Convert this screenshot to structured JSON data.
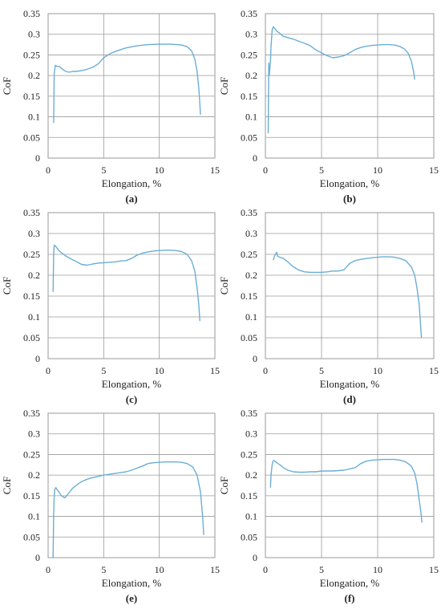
{
  "chart_data": [
    {
      "type": "line",
      "panel_label": "(a)",
      "xlabel": "Elongation, %",
      "ylabel": "CoF",
      "xlim": [
        0,
        15
      ],
      "ylim": [
        0,
        0.35
      ],
      "xticks": [
        "0",
        "5",
        "10",
        "15"
      ],
      "yticks": [
        "0",
        "0.05",
        "0.1",
        "0.15",
        "0.2",
        "0.25",
        "0.3",
        "0.35"
      ],
      "grid": true,
      "series_color": "#6aaed6",
      "x": [
        0.5,
        0.55,
        0.65,
        0.8,
        1.0,
        1.3,
        1.6,
        1.9,
        2.2,
        2.5,
        3.0,
        3.5,
        4.0,
        4.5,
        5.0,
        5.5,
        6.0,
        7.0,
        8.0,
        9.0,
        10.0,
        11.0,
        12.0,
        12.5,
        12.9,
        13.2,
        13.4,
        13.55,
        13.65,
        13.7
      ],
      "y": [
        0.085,
        0.205,
        0.225,
        0.222,
        0.222,
        0.215,
        0.21,
        0.208,
        0.21,
        0.21,
        0.212,
        0.215,
        0.22,
        0.228,
        0.243,
        0.252,
        0.258,
        0.267,
        0.272,
        0.275,
        0.276,
        0.276,
        0.274,
        0.27,
        0.26,
        0.24,
        0.21,
        0.17,
        0.13,
        0.105
      ]
    },
    {
      "type": "line",
      "panel_label": "(b)",
      "xlabel": "Elongation, %",
      "ylabel": "CoF",
      "xlim": [
        0,
        15
      ],
      "ylim": [
        0,
        0.35
      ],
      "xticks": [
        "0",
        "5",
        "10",
        "15"
      ],
      "yticks": [
        "0",
        "0.05",
        "0.1",
        "0.15",
        "0.2",
        "0.25",
        "0.3",
        "0.35"
      ],
      "grid": true,
      "series_color": "#6aaed6",
      "x": [
        0.25,
        0.3,
        0.35,
        0.45,
        0.5,
        0.6,
        0.7,
        0.8,
        1.0,
        1.3,
        1.6,
        2.0,
        2.5,
        3.0,
        3.5,
        4.0,
        4.5,
        5.0,
        5.5,
        6.0,
        6.5,
        7.0,
        7.5,
        8.0,
        8.5,
        9.0,
        9.5,
        10.0,
        10.5,
        11.0,
        11.5,
        12.0,
        12.4,
        12.7,
        13.0,
        13.2,
        13.3
      ],
      "y": [
        0.06,
        0.23,
        0.2,
        0.235,
        0.27,
        0.31,
        0.318,
        0.315,
        0.308,
        0.302,
        0.295,
        0.292,
        0.288,
        0.283,
        0.278,
        0.272,
        0.262,
        0.255,
        0.248,
        0.243,
        0.245,
        0.248,
        0.255,
        0.263,
        0.268,
        0.271,
        0.273,
        0.274,
        0.275,
        0.275,
        0.274,
        0.27,
        0.264,
        0.255,
        0.235,
        0.21,
        0.19
      ]
    },
    {
      "type": "line",
      "panel_label": "(c)",
      "xlabel": "Elongation, %",
      "ylabel": "CoF",
      "xlim": [
        0,
        15
      ],
      "ylim": [
        0,
        0.35
      ],
      "xticks": [
        "0",
        "5",
        "10",
        "15"
      ],
      "yticks": [
        "0",
        "0.05",
        "0.1",
        "0.15",
        "0.2",
        "0.25",
        "0.3",
        "0.35"
      ],
      "grid": true,
      "series_color": "#6aaed6",
      "x": [
        0.45,
        0.5,
        0.55,
        0.65,
        0.8,
        1.0,
        1.3,
        1.6,
        2.0,
        2.5,
        3.0,
        3.5,
        4.0,
        4.5,
        5.0,
        5.5,
        6.0,
        6.5,
        7.0,
        7.5,
        8.0,
        8.5,
        9.0,
        9.5,
        10.0,
        10.5,
        11.0,
        11.5,
        12.0,
        12.5,
        12.9,
        13.2,
        13.4,
        13.55,
        13.65
      ],
      "y": [
        0.16,
        0.25,
        0.272,
        0.27,
        0.265,
        0.258,
        0.252,
        0.246,
        0.24,
        0.233,
        0.226,
        0.224,
        0.227,
        0.229,
        0.23,
        0.231,
        0.232,
        0.234,
        0.235,
        0.24,
        0.248,
        0.253,
        0.256,
        0.258,
        0.259,
        0.26,
        0.26,
        0.259,
        0.257,
        0.25,
        0.235,
        0.21,
        0.17,
        0.13,
        0.09
      ]
    },
    {
      "type": "line",
      "panel_label": "(d)",
      "xlabel": "Elongation, %",
      "ylabel": "CoF",
      "xlim": [
        0,
        15
      ],
      "ylim": [
        0,
        0.35
      ],
      "xticks": [
        "0",
        "5",
        "10",
        "15"
      ],
      "yticks": [
        "0",
        "0.05",
        "0.1",
        "0.15",
        "0.2",
        "0.25",
        "0.3",
        "0.35"
      ],
      "grid": true,
      "series_color": "#6aaed6",
      "x": [
        0.7,
        0.8,
        0.9,
        1.0,
        1.1,
        1.3,
        1.6,
        2.0,
        2.5,
        3.0,
        3.5,
        4.0,
        4.5,
        5.0,
        5.5,
        6.0,
        6.5,
        7.0,
        7.5,
        8.0,
        8.5,
        9.0,
        9.5,
        10.0,
        10.5,
        11.0,
        11.5,
        12.0,
        12.5,
        13.0,
        13.3,
        13.5,
        13.7,
        13.8,
        13.9
      ],
      "y": [
        0.236,
        0.245,
        0.25,
        0.255,
        0.245,
        0.243,
        0.24,
        0.232,
        0.22,
        0.212,
        0.208,
        0.207,
        0.207,
        0.207,
        0.208,
        0.21,
        0.21,
        0.213,
        0.228,
        0.235,
        0.238,
        0.24,
        0.242,
        0.243,
        0.244,
        0.244,
        0.243,
        0.24,
        0.235,
        0.22,
        0.2,
        0.17,
        0.13,
        0.09,
        0.05
      ]
    },
    {
      "type": "line",
      "panel_label": "(e)",
      "xlabel": "Elongation, %",
      "ylabel": "CoF",
      "xlim": [
        0,
        15
      ],
      "ylim": [
        0,
        0.35
      ],
      "xticks": [
        "0",
        "5",
        "10",
        "15"
      ],
      "yticks": [
        "0",
        "0.05",
        "0.1",
        "0.15",
        "0.2",
        "0.25",
        "0.3",
        "0.35"
      ],
      "grid": true,
      "series_color": "#6aaed6",
      "x": [
        0.45,
        0.5,
        0.55,
        0.6,
        0.7,
        0.8,
        1.0,
        1.2,
        1.5,
        1.8,
        2.2,
        2.6,
        3.0,
        3.5,
        4.0,
        4.5,
        5.0,
        5.5,
        6.0,
        6.5,
        7.0,
        7.5,
        8.0,
        8.5,
        9.0,
        9.5,
        10.0,
        10.5,
        11.0,
        11.5,
        12.0,
        12.5,
        13.0,
        13.4,
        13.7,
        13.9,
        14.0
      ],
      "y": [
        0.0,
        0.1,
        0.15,
        0.165,
        0.17,
        0.165,
        0.158,
        0.15,
        0.145,
        0.155,
        0.168,
        0.177,
        0.184,
        0.19,
        0.194,
        0.197,
        0.2,
        0.202,
        0.204,
        0.206,
        0.208,
        0.212,
        0.217,
        0.222,
        0.228,
        0.23,
        0.231,
        0.232,
        0.232,
        0.232,
        0.231,
        0.228,
        0.22,
        0.2,
        0.16,
        0.1,
        0.055
      ]
    },
    {
      "type": "line",
      "panel_label": "(f)",
      "xlabel": "Elongation, %",
      "ylabel": "CoF",
      "xlim": [
        0,
        15
      ],
      "ylim": [
        0,
        0.35
      ],
      "xticks": [
        "0",
        "5",
        "10",
        "15"
      ],
      "yticks": [
        "0",
        "0.05",
        "0.1",
        "0.15",
        "0.2",
        "0.25",
        "0.3",
        "0.35"
      ],
      "grid": true,
      "series_color": "#6aaed6",
      "x": [
        0.45,
        0.5,
        0.6,
        0.7,
        0.8,
        1.0,
        1.3,
        1.6,
        2.0,
        2.5,
        3.0,
        3.5,
        4.0,
        4.5,
        5.0,
        5.5,
        6.0,
        6.5,
        7.0,
        7.5,
        8.0,
        8.5,
        9.0,
        9.5,
        10.0,
        10.5,
        11.0,
        11.5,
        12.0,
        12.5,
        13.0,
        13.3,
        13.5,
        13.7,
        13.85,
        13.95
      ],
      "y": [
        0.17,
        0.2,
        0.225,
        0.235,
        0.235,
        0.23,
        0.225,
        0.218,
        0.212,
        0.208,
        0.207,
        0.207,
        0.208,
        0.208,
        0.21,
        0.21,
        0.21,
        0.211,
        0.212,
        0.215,
        0.218,
        0.228,
        0.234,
        0.236,
        0.237,
        0.238,
        0.238,
        0.238,
        0.236,
        0.232,
        0.222,
        0.205,
        0.18,
        0.14,
        0.11,
        0.085
      ]
    }
  ]
}
